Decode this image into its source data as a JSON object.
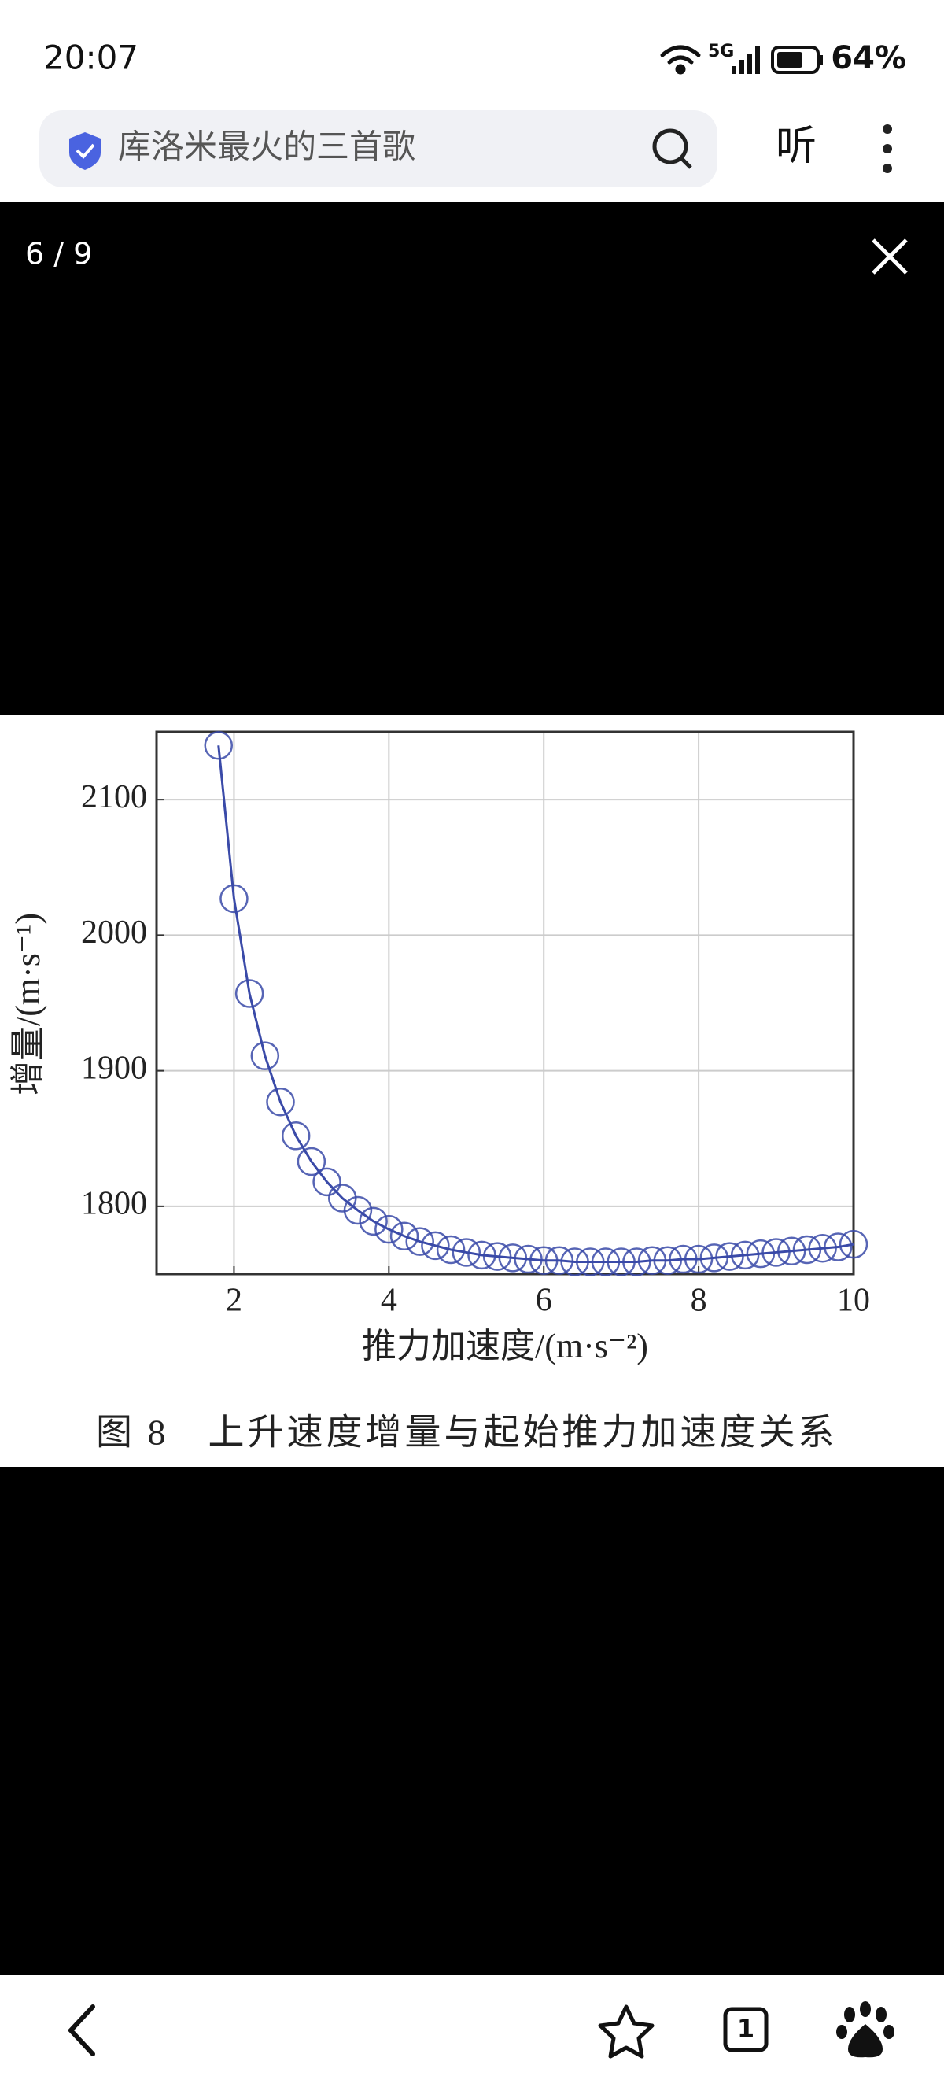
{
  "status_bar": {
    "time": "20:07",
    "network": "5G",
    "battery": "64%"
  },
  "search_bar": {
    "query": "库洛米最火的三首歌",
    "listen": "听"
  },
  "viewer": {
    "counter": "6 / 9",
    "caption": "图 8　上升速度增量与起始推力加速度关系"
  },
  "bottom_nav": {
    "tabs": "1"
  },
  "chart_data": {
    "type": "line",
    "x_label": "推力加速度/(m·s⁻²)",
    "y_label": "增量/(m·s⁻¹)",
    "x": [
      1.8,
      2.0,
      2.2,
      2.4,
      2.6,
      2.8,
      3.0,
      3.2,
      3.4,
      3.6,
      3.8,
      4.0,
      4.2,
      4.4,
      4.6,
      4.8,
      5.0,
      5.2,
      5.4,
      5.6,
      5.8,
      6.0,
      6.2,
      6.4,
      6.6,
      6.8,
      7.0,
      7.2,
      7.4,
      7.6,
      7.8,
      8.0,
      8.2,
      8.4,
      8.6,
      8.8,
      9.0,
      9.2,
      9.4,
      9.6,
      9.8,
      10.0
    ],
    "values": [
      2140,
      2027,
      1957,
      1911,
      1877,
      1852,
      1833,
      1818,
      1806,
      1797,
      1789,
      1783,
      1778,
      1774,
      1771,
      1768,
      1766,
      1764,
      1763,
      1762,
      1761,
      1760,
      1760,
      1759,
      1759,
      1759,
      1759,
      1759,
      1760,
      1760,
      1761,
      1761,
      1762,
      1763,
      1764,
      1765,
      1766,
      1767,
      1768,
      1769,
      1770,
      1772
    ],
    "color": "#3a4aa8",
    "xlim": [
      1,
      10
    ],
    "ylim": [
      1750,
      2150
    ],
    "xticks": [
      2,
      4,
      6,
      8,
      10
    ],
    "yticks": [
      1800,
      1900,
      2000,
      2100
    ],
    "grid": true,
    "markers": true
  }
}
